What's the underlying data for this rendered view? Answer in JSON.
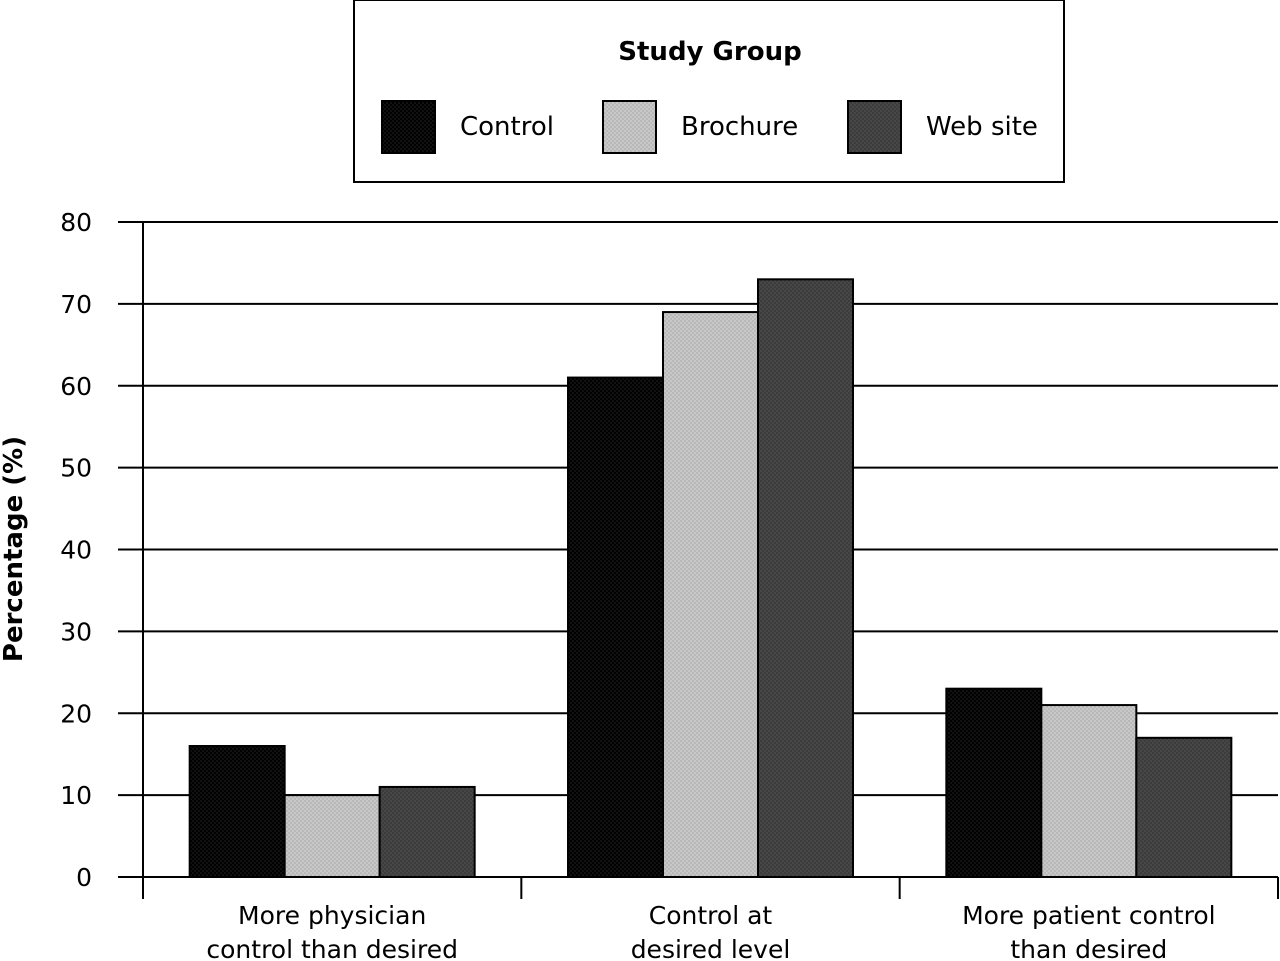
{
  "chart_data": {
    "type": "bar",
    "title": "",
    "xlabel": "",
    "ylabel": "Percentage (%)",
    "ylim": [
      0,
      80
    ],
    "yticks": [
      0,
      10,
      20,
      30,
      40,
      50,
      60,
      70,
      80
    ],
    "grid": true,
    "legend_title": "Study Group",
    "legend_position": "top",
    "categories": [
      [
        "More physician",
        "control than desired"
      ],
      [
        "Control at",
        "desired level"
      ],
      [
        "More patient control",
        "than desired"
      ]
    ],
    "series": [
      {
        "name": "Control",
        "color": "#000000",
        "values": [
          16,
          61,
          23
        ]
      },
      {
        "name": "Brochure",
        "color": "#c8c8c8",
        "values": [
          10,
          69,
          21
        ]
      },
      {
        "name": "Web site",
        "color": "#474747",
        "values": [
          11,
          73,
          17
        ]
      }
    ]
  }
}
